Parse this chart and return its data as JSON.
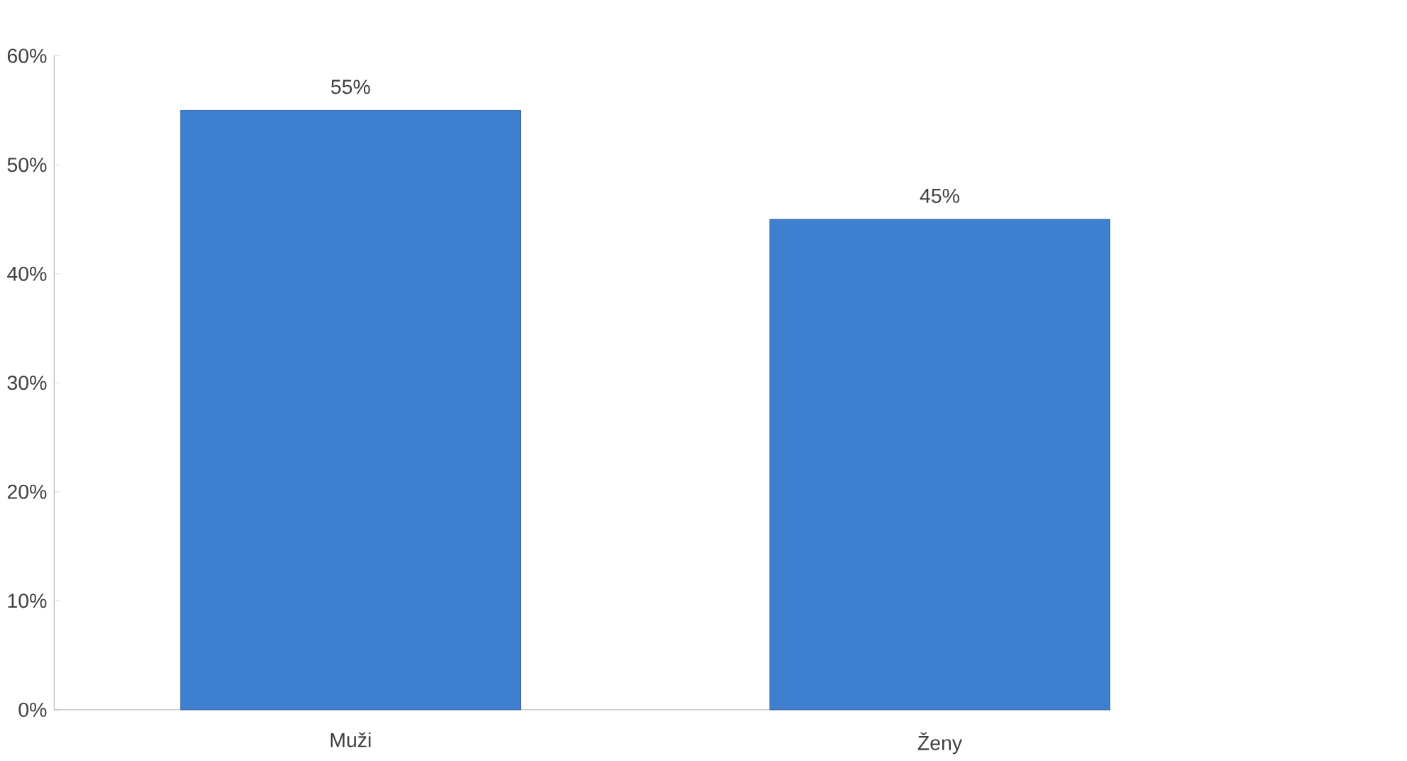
{
  "chart_data": {
    "type": "bar",
    "categories": [
      "Muži",
      "Ženy"
    ],
    "values": [
      55,
      45
    ],
    "value_labels": [
      "55%",
      "45%"
    ],
    "color": "#3f7fd0",
    "ylim": [
      0,
      60
    ],
    "yticks": [
      {
        "value": 0,
        "label": "0%"
      },
      {
        "value": 10,
        "label": "10%"
      },
      {
        "value": 20,
        "label": "20%"
      },
      {
        "value": 30,
        "label": "30%"
      },
      {
        "value": 40,
        "label": "40%"
      },
      {
        "value": 50,
        "label": "50%"
      },
      {
        "value": 60,
        "label": "60%"
      }
    ],
    "grid": false
  }
}
